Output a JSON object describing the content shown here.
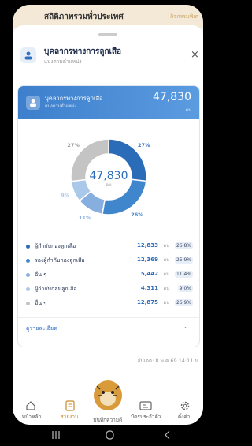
{
  "background_header": {
    "title": "สถิติภาพรวมทั่วประเทศ",
    "tab": "กิจกรรมพิเศ"
  },
  "sheet": {
    "title": "บุคลากรทางการลูกเสือ",
    "subtitle": "แบ่งตามตำแหน่ง"
  },
  "card": {
    "title": "บุคลากรทางการลูกเสือ",
    "subtitle": "แบ่งตามตำแหน่ง",
    "total": "47,830",
    "unit": "คน"
  },
  "chart_data": {
    "type": "pie",
    "donut": true,
    "center_value": "47,830",
    "center_unit": "คน",
    "categories": [
      "ผู้กำกับกองลูกเสือ",
      "รองผู้กำกับกองลูกเสือ",
      "อื่น ๆ",
      "ผู้กำกับกลุ่มลูกเสือ",
      "อื่น ๆ"
    ],
    "values": [
      26.8,
      25.9,
      11.4,
      9.0,
      26.9
    ],
    "value_labels": [
      "27%",
      "26%",
      "11%",
      "9%",
      "27%"
    ],
    "colors": [
      "#2b6cb8",
      "#3f86cc",
      "#86afdf",
      "#aac8ea",
      "#c4c4c4"
    ],
    "counts": [
      "12,833",
      "12,369",
      "5,442",
      "4,311",
      "12,875"
    ],
    "count_unit": "คน",
    "percent_labels": [
      "26.8%",
      "25.9%",
      "11.4%",
      "9.0%",
      "26.9%"
    ]
  },
  "details_link": "ดูรายละเอียด",
  "updated": "อัปเดต: 8 พ.ค.69 14:11 น.",
  "nav": [
    "หน้าหลัก",
    "รายงาน",
    "บันทึกความดี",
    "บัตรประจำตัว",
    "ตั้งค่า"
  ]
}
